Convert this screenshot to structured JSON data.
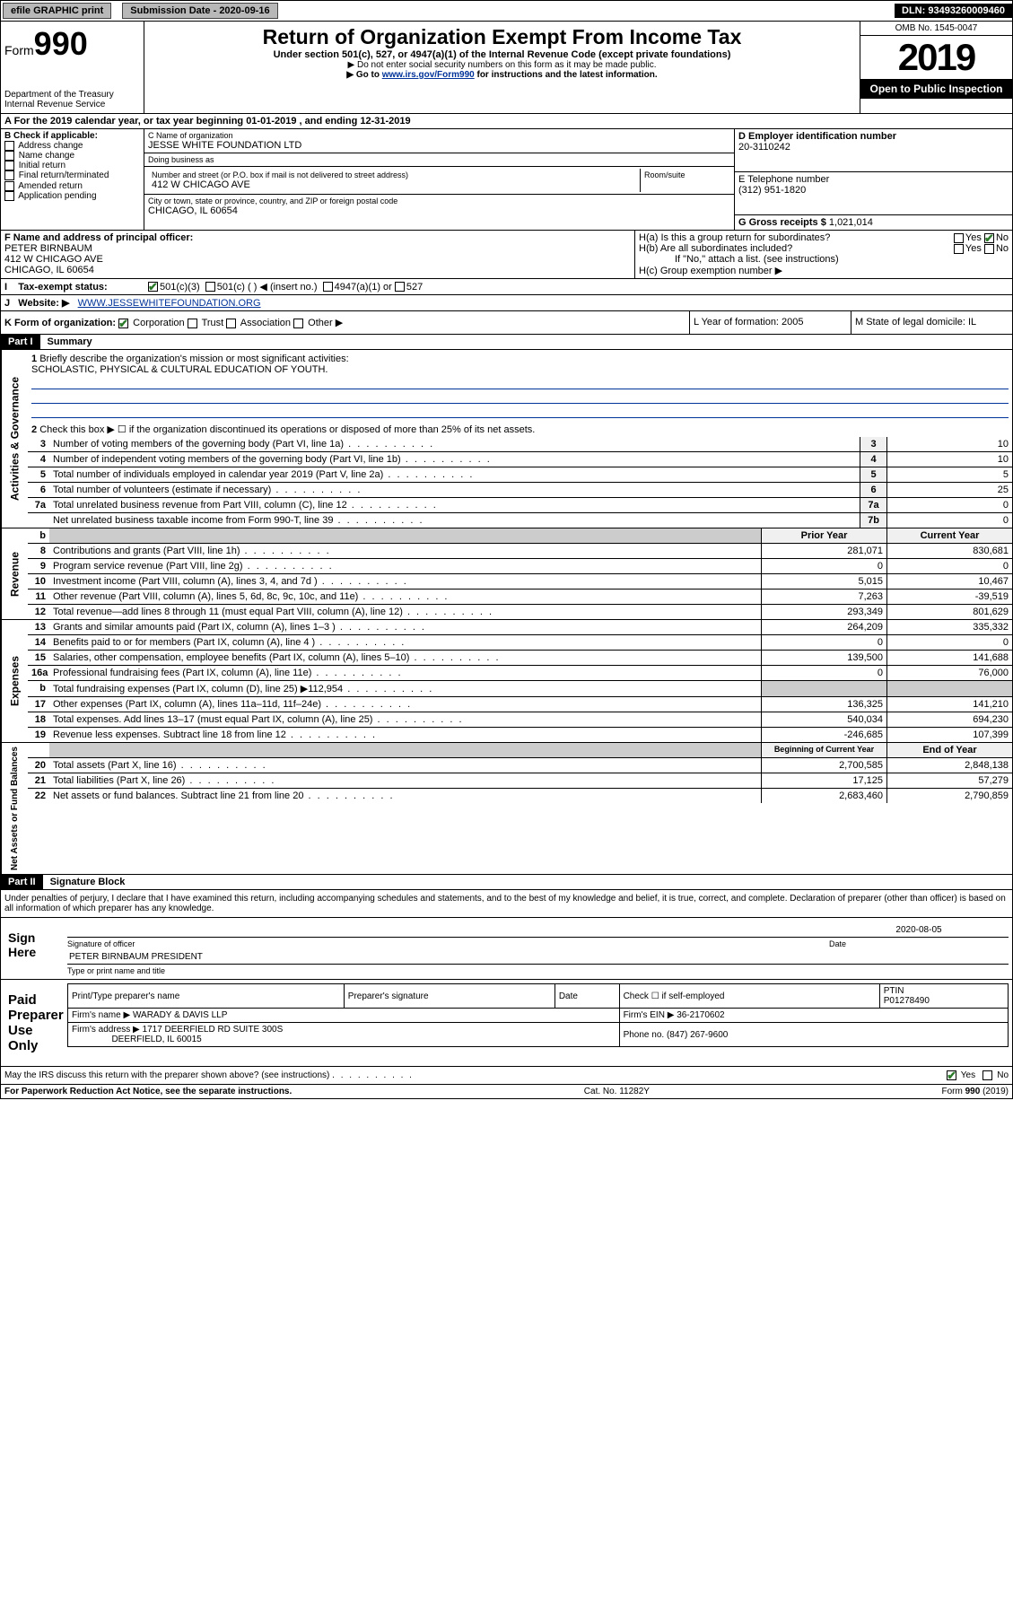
{
  "top": {
    "efile": "efile GRAPHIC print",
    "subDateLabel": "Submission Date - 2020-09-16",
    "dln": "DLN: 93493260009460"
  },
  "header": {
    "formPrefix": "Form",
    "formNum": "990",
    "dept1": "Department of the Treasury",
    "dept2": "Internal Revenue Service",
    "title": "Return of Organization Exempt From Income Tax",
    "sub1": "Under section 501(c), 527, or 4947(a)(1) of the Internal Revenue Code (except private foundations)",
    "sub2": "▶ Do not enter social security numbers on this form as it may be made public.",
    "sub3a": "▶ Go to ",
    "sub3link": "www.irs.gov/Form990",
    "sub3b": " for instructions and the latest information.",
    "omb": "OMB No. 1545-0047",
    "year": "2019",
    "openPublic": "Open to Public Inspection"
  },
  "lineA": "A For the 2019 calendar year, or tax year beginning 01-01-2019   , and ending 12-31-2019",
  "boxB": {
    "label": "B Check if applicable:",
    "opts": [
      "Address change",
      "Name change",
      "Initial return",
      "Final return/terminated",
      "Amended return",
      "Application pending"
    ]
  },
  "boxC": {
    "nameLabel": "C Name of organization",
    "name": "JESSE WHITE FOUNDATION LTD",
    "dbaLabel": "Doing business as",
    "dba": "",
    "addrLabel": "Number and street (or P.O. box if mail is not delivered to street address)",
    "roomLabel": "Room/suite",
    "addr": "412 W CHICAGO AVE",
    "cityLabel": "City or town, state or province, country, and ZIP or foreign postal code",
    "city": "CHICAGO, IL  60654"
  },
  "boxD": {
    "label": "D Employer identification number",
    "val": "20-3110242"
  },
  "boxE": {
    "label": "E Telephone number",
    "val": "(312) 951-1820"
  },
  "boxG": {
    "label": "G Gross receipts $",
    "val": "1,021,014"
  },
  "boxF": {
    "label": "F  Name and address of principal officer:",
    "name": "PETER BIRNBAUM",
    "addr": "412 W CHICAGO AVE",
    "city": "CHICAGO, IL  60654"
  },
  "boxH": {
    "ha": "H(a)  Is this a group return for subordinates?",
    "hb": "H(b)  Are all subordinates included?",
    "hbNote": "If \"No,\" attach a list. (see instructions)",
    "hc": "H(c)  Group exemption number ▶"
  },
  "rowI": {
    "label": "Tax-exempt status:",
    "opts": [
      "501(c)(3)",
      "501(c) (  ) ◀ (insert no.)",
      "4947(a)(1) or",
      "527"
    ]
  },
  "rowJ": {
    "label": "J",
    "text": "Website: ▶",
    "url": "WWW.JESSEWHITEFOUNDATION.ORG"
  },
  "rowK": {
    "k1label": "K Form of organization:",
    "k1opts": [
      "Corporation",
      "Trust",
      "Association",
      "Other ▶"
    ],
    "k2": "L Year of formation: 2005",
    "k3": "M State of legal domicile: IL"
  },
  "part1": {
    "header": "Part I",
    "title": "Summary"
  },
  "gov": {
    "q1": "Briefly describe the organization's mission or most significant activities:",
    "q1ans": "SCHOLASTIC, PHYSICAL & CULTURAL EDUCATION OF YOUTH.",
    "q2": "Check this box ▶ ☐  if the organization discontinued its operations or disposed of more than 25% of its net assets.",
    "rows": [
      {
        "n": "3",
        "t": "Number of voting members of the governing body (Part VI, line 1a)",
        "box": "3",
        "v": "10"
      },
      {
        "n": "4",
        "t": "Number of independent voting members of the governing body (Part VI, line 1b)",
        "box": "4",
        "v": "10"
      },
      {
        "n": "5",
        "t": "Total number of individuals employed in calendar year 2019 (Part V, line 2a)",
        "box": "5",
        "v": "5"
      },
      {
        "n": "6",
        "t": "Total number of volunteers (estimate if necessary)",
        "box": "6",
        "v": "25"
      },
      {
        "n": "7a",
        "t": "Total unrelated business revenue from Part VIII, column (C), line 12",
        "box": "7a",
        "v": "0"
      },
      {
        "n": "",
        "t": "Net unrelated business taxable income from Form 990-T, line 39",
        "box": "7b",
        "v": "0"
      }
    ]
  },
  "revHead": {
    "b": "b",
    "prior": "Prior Year",
    "curr": "Current Year"
  },
  "rev": [
    {
      "n": "8",
      "t": "Contributions and grants (Part VIII, line 1h)",
      "p": "281,071",
      "c": "830,681"
    },
    {
      "n": "9",
      "t": "Program service revenue (Part VIII, line 2g)",
      "p": "0",
      "c": "0"
    },
    {
      "n": "10",
      "t": "Investment income (Part VIII, column (A), lines 3, 4, and 7d )",
      "p": "5,015",
      "c": "10,467"
    },
    {
      "n": "11",
      "t": "Other revenue (Part VIII, column (A), lines 5, 6d, 8c, 9c, 10c, and 11e)",
      "p": "7,263",
      "c": "-39,519"
    },
    {
      "n": "12",
      "t": "Total revenue—add lines 8 through 11 (must equal Part VIII, column (A), line 12)",
      "p": "293,349",
      "c": "801,629"
    }
  ],
  "exp": [
    {
      "n": "13",
      "t": "Grants and similar amounts paid (Part IX, column (A), lines 1–3 )",
      "p": "264,209",
      "c": "335,332"
    },
    {
      "n": "14",
      "t": "Benefits paid to or for members (Part IX, column (A), line 4 )",
      "p": "0",
      "c": "0"
    },
    {
      "n": "15",
      "t": "Salaries, other compensation, employee benefits (Part IX, column (A), lines 5–10)",
      "p": "139,500",
      "c": "141,688"
    },
    {
      "n": "16a",
      "t": "Professional fundraising fees (Part IX, column (A), line 11e)",
      "p": "0",
      "c": "76,000"
    },
    {
      "n": "b",
      "t": "Total fundraising expenses (Part IX, column (D), line 25) ▶112,954",
      "p": "",
      "c": "",
      "gray": true
    },
    {
      "n": "17",
      "t": "Other expenses (Part IX, column (A), lines 11a–11d, 11f–24e)",
      "p": "136,325",
      "c": "141,210"
    },
    {
      "n": "18",
      "t": "Total expenses. Add lines 13–17 (must equal Part IX, column (A), line 25)",
      "p": "540,034",
      "c": "694,230"
    },
    {
      "n": "19",
      "t": "Revenue less expenses. Subtract line 18 from line 12",
      "p": "-246,685",
      "c": "107,399"
    }
  ],
  "netHead": {
    "prior": "Beginning of Current Year",
    "curr": "End of Year"
  },
  "net": [
    {
      "n": "20",
      "t": "Total assets (Part X, line 16)",
      "p": "2,700,585",
      "c": "2,848,138"
    },
    {
      "n": "21",
      "t": "Total liabilities (Part X, line 26)",
      "p": "17,125",
      "c": "57,279"
    },
    {
      "n": "22",
      "t": "Net assets or fund balances. Subtract line 21 from line 20",
      "p": "2,683,460",
      "c": "2,790,859"
    }
  ],
  "sideLabels": {
    "gov": "Activities & Governance",
    "rev": "Revenue",
    "exp": "Expenses",
    "net": "Net Assets or Fund Balances"
  },
  "part2": {
    "header": "Part II",
    "title": "Signature Block"
  },
  "sigPerjury": "Under penalties of perjury, I declare that I have examined this return, including accompanying schedules and statements, and to the best of my knowledge and belief, it is true, correct, and complete. Declaration of preparer (other than officer) is based on all information of which preparer has any knowledge.",
  "sign": {
    "here": "Sign Here",
    "sigLabel": "Signature of officer",
    "date": "2020-08-05",
    "dateLabel": "Date",
    "name": "PETER BIRNBAUM PRESIDENT",
    "nameLabel": "Type or print name and title"
  },
  "prep": {
    "label": "Paid Preparer Use Only",
    "h1": "Print/Type preparer's name",
    "h2": "Preparer's signature",
    "h3": "Date",
    "h4": "Check ☐ if self-employed",
    "h5": "PTIN",
    "ptin": "P01278490",
    "firmLabel": "Firm's name   ▶",
    "firm": "WARADY & DAVIS LLP",
    "einLabel": "Firm's EIN ▶",
    "ein": "36-2170602",
    "addrLabel": "Firm's address ▶",
    "addr": "1717 DEERFIELD RD SUITE 300S",
    "city": "DEERFIELD, IL  60015",
    "phoneLabel": "Phone no.",
    "phone": "(847) 267-9600"
  },
  "discuss": "May the IRS discuss this return with the preparer shown above? (see instructions)",
  "footer": {
    "left": "For Paperwork Reduction Act Notice, see the separate instructions.",
    "mid": "Cat. No. 11282Y",
    "right": "Form 990 (2019)"
  }
}
